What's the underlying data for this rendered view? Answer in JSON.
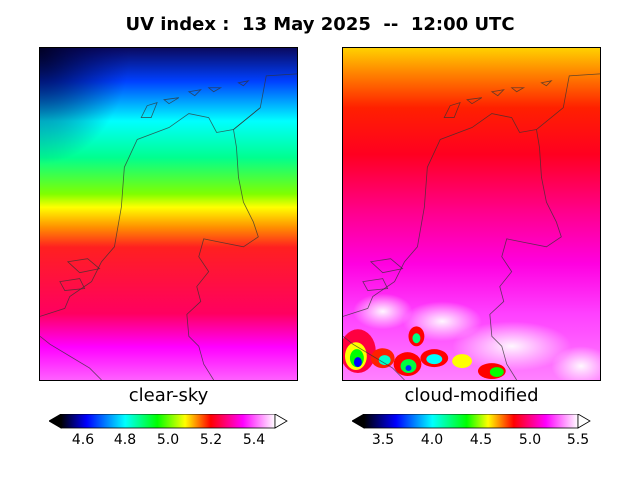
{
  "title": "UV index :  13 May 2025  --  12:00 UTC",
  "panels": {
    "left": {
      "label": "clear-sky",
      "colorbar_ticks": [
        "4.6",
        "4.8",
        "5.0",
        "5.2",
        "5.4"
      ]
    },
    "right": {
      "label": "cloud-modified",
      "colorbar_ticks": [
        "3.5",
        "4.0",
        "4.5",
        "5.0",
        "5.5"
      ]
    }
  },
  "colors": {
    "black": "#000000",
    "blue": "#0000ff",
    "cyan": "#00ffff",
    "green": "#00ff00",
    "yellow": "#ffff00",
    "red": "#ff0000",
    "magenta": "#ff00ff",
    "white": "#ffffff"
  }
}
